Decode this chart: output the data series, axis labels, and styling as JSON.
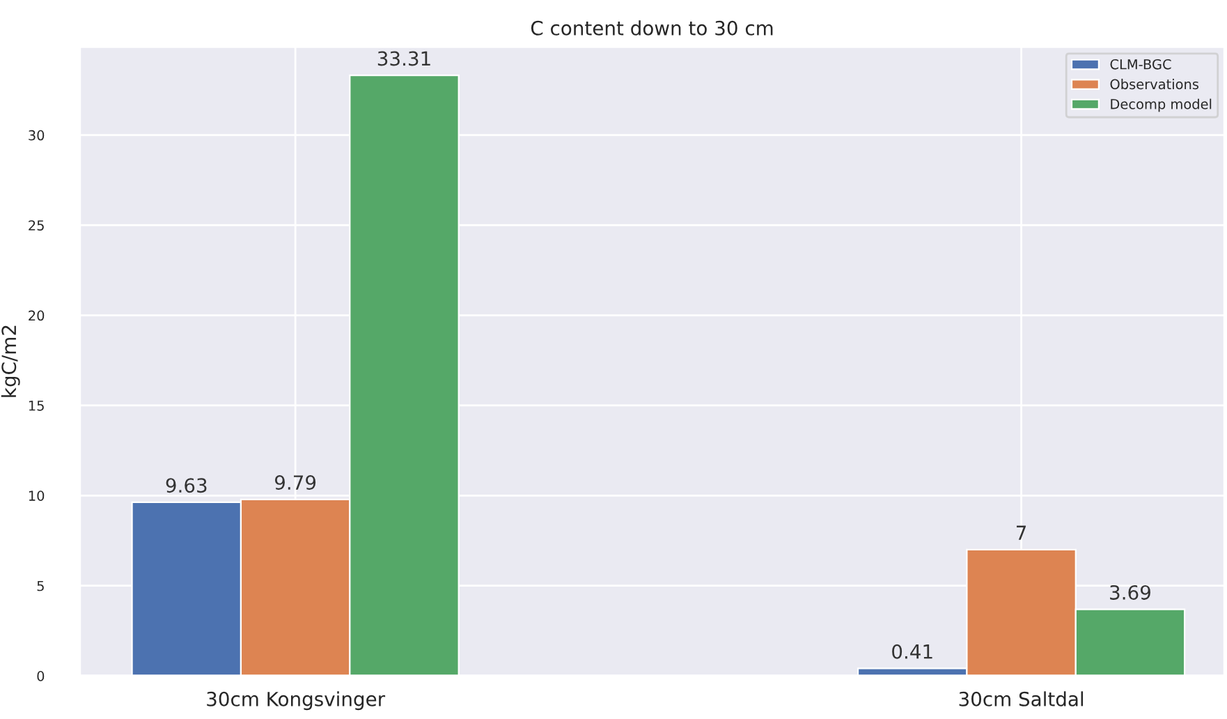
{
  "chart_data": {
    "type": "bar",
    "title": "C content down to 30 cm",
    "ylabel": "kgC/m2",
    "categories": [
      "30cm Kongsvinger",
      "30cm Saltdal"
    ],
    "series": [
      {
        "name": "CLM-BGC",
        "color": "#4c72b0",
        "values": [
          9.63,
          0.41
        ]
      },
      {
        "name": "Observations",
        "color": "#dd8452",
        "values": [
          9.79,
          7
        ]
      },
      {
        "name": "Decomp model",
        "color": "#55a868",
        "values": [
          33.31,
          3.69
        ]
      }
    ],
    "ylim": [
      0,
      34.9
    ],
    "yticks": [
      0,
      5,
      10,
      15,
      20,
      25,
      30
    ],
    "grid": true,
    "legend": "top right",
    "data_labels": true
  }
}
